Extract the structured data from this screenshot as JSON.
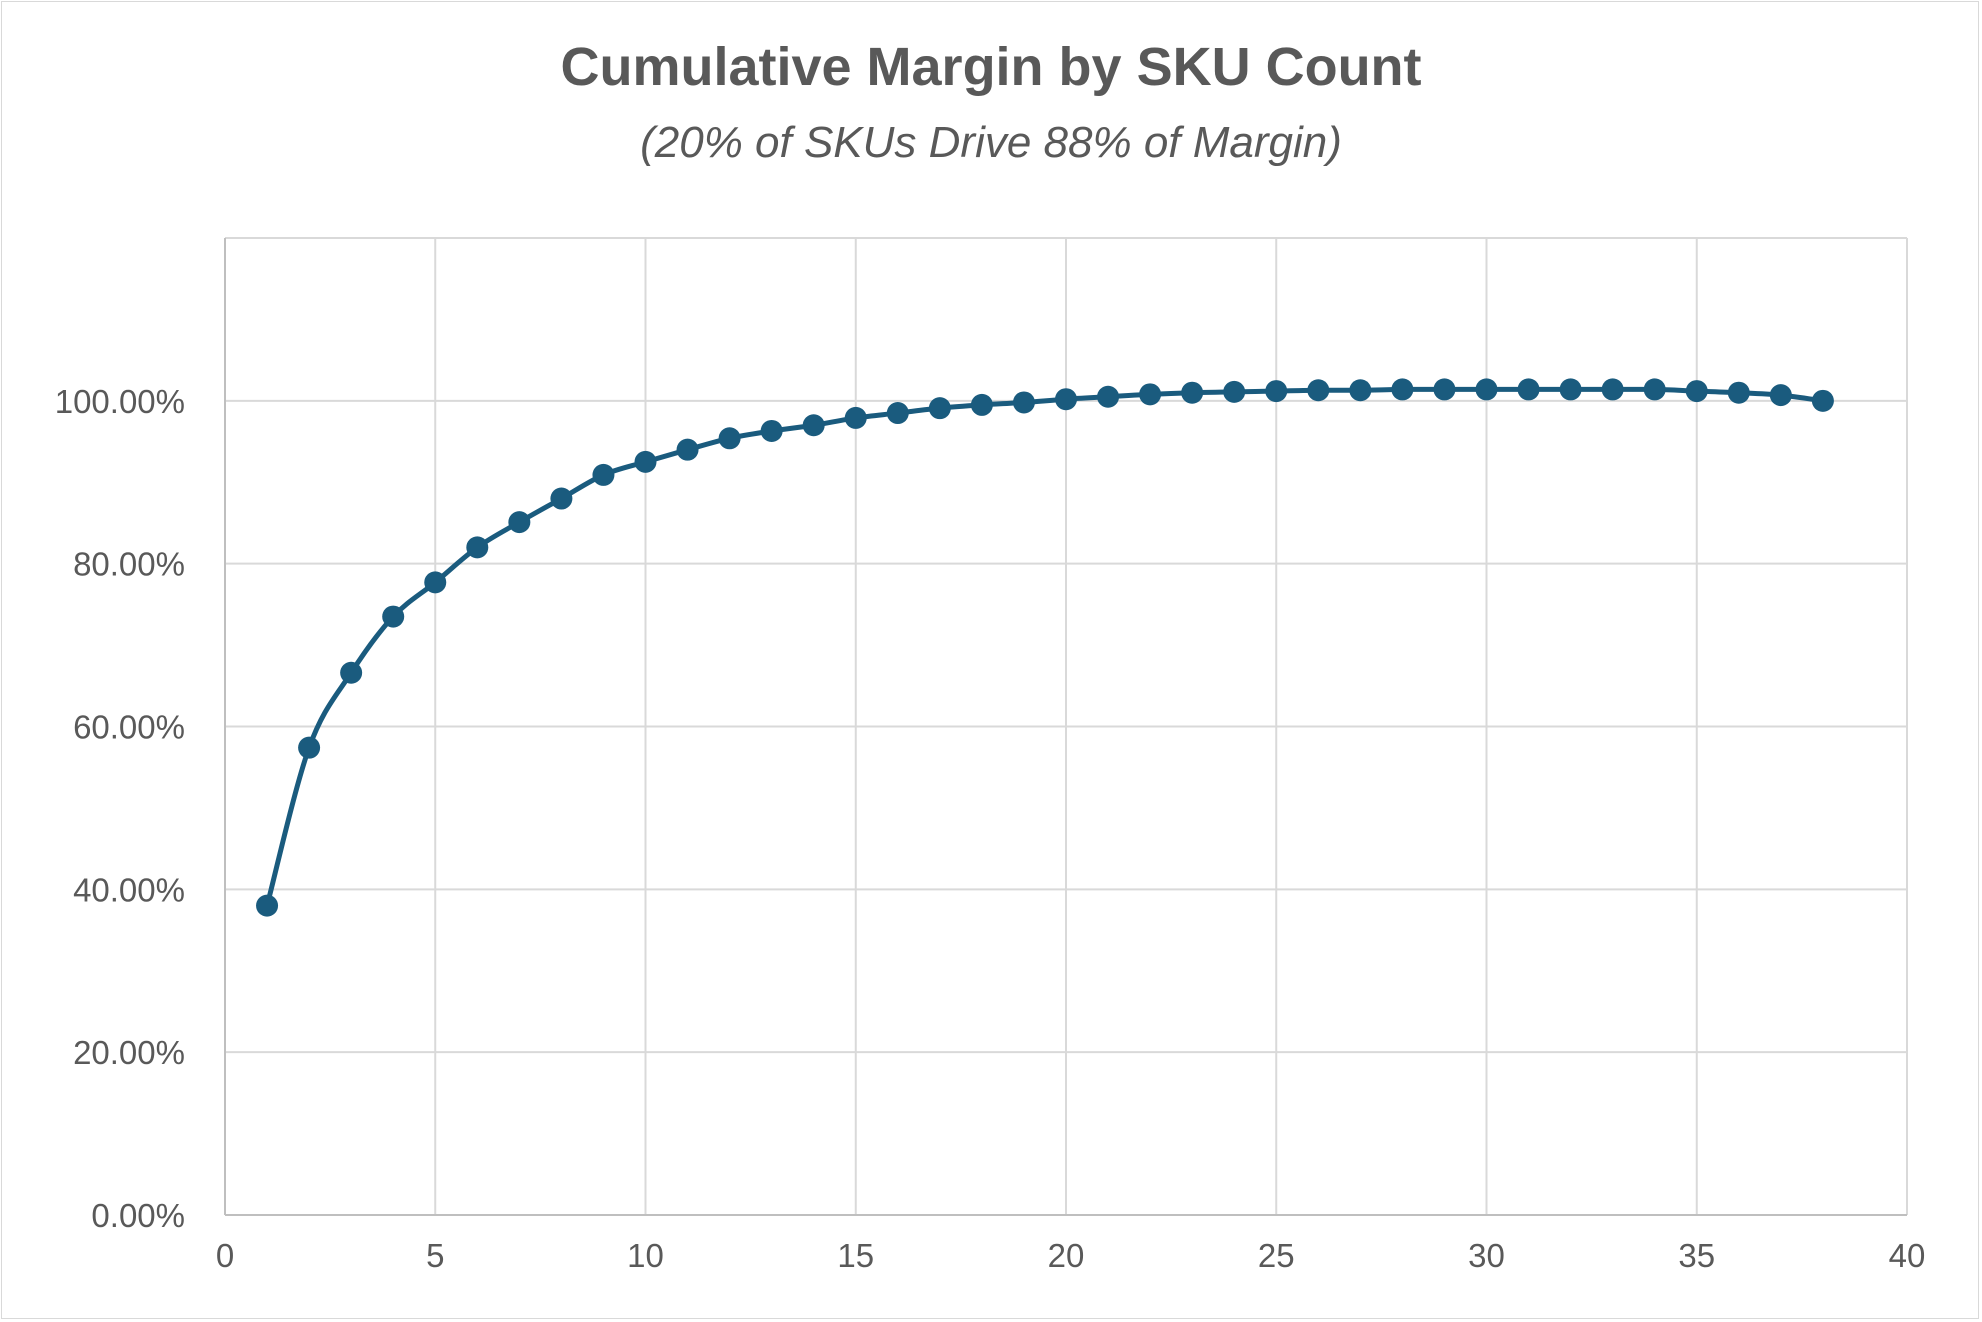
{
  "chart_data": {
    "type": "scatter",
    "title": "Cumulative Margin by SKU Count",
    "subtitle": "(20% of SKUs Drive 88% of Margin)",
    "xlabel": "",
    "ylabel": "",
    "xlim": [
      0,
      40
    ],
    "ylim": [
      0,
      1.2
    ],
    "x_ticks": [
      0,
      5,
      10,
      15,
      20,
      25,
      30,
      35,
      40
    ],
    "x_tick_labels": [
      "0",
      "5",
      "10",
      "15",
      "20",
      "25",
      "30",
      "35",
      "40"
    ],
    "y_ticks": [
      0,
      0.2,
      0.4,
      0.6,
      0.8,
      1.0
    ],
    "y_tick_labels": [
      "0.00%",
      "20.00%",
      "40.00%",
      "60.00%",
      "80.00%",
      "100.00%"
    ],
    "grid": true,
    "legend": "none",
    "line_style": "smooth line with markers",
    "series_color": "#1a5b7e",
    "grid_color": "#d9d9d9",
    "series": [
      {
        "x": [
          1,
          2,
          3,
          4,
          5,
          6,
          7,
          8,
          9,
          10,
          11,
          12,
          13,
          14,
          15,
          16,
          17,
          18,
          19,
          20,
          21,
          22,
          23,
          24,
          25,
          26,
          27,
          28,
          29,
          30,
          31,
          32,
          33,
          34,
          35,
          36,
          37,
          38
        ],
        "values": [
          0.38,
          0.574,
          0.666,
          0.735,
          0.777,
          0.82,
          0.851,
          0.88,
          0.909,
          0.925,
          0.94,
          0.954,
          0.963,
          0.97,
          0.979,
          0.985,
          0.991,
          0.995,
          0.998,
          1.002,
          1.005,
          1.008,
          1.01,
          1.011,
          1.012,
          1.013,
          1.013,
          1.014,
          1.014,
          1.014,
          1.014,
          1.014,
          1.014,
          1.014,
          1.012,
          1.01,
          1.007,
          1.0
        ]
      }
    ]
  }
}
